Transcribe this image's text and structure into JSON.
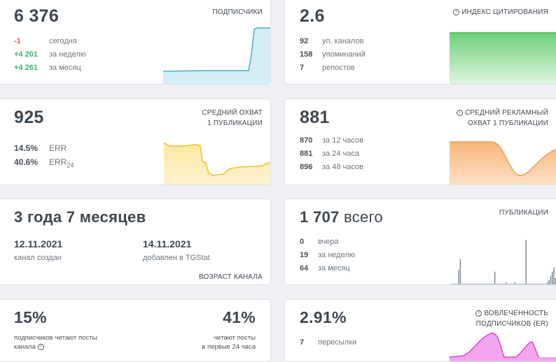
{
  "subscribers": {
    "value": "6 376",
    "label": "ПОДПИСЧИКИ",
    "rows": [
      {
        "value": "-1",
        "desc": "сегодня"
      },
      {
        "value": "+4 201",
        "desc": "за неделю"
      },
      {
        "value": "+4 261",
        "desc": "за месяц"
      }
    ],
    "accent": "#49b1c8"
  },
  "citation": {
    "value": "2.6",
    "label": "ИНДЕКС ЦИТИРОВАНИЯ",
    "rows": [
      {
        "value": "92",
        "desc": "уп. каналов"
      },
      {
        "value": "158",
        "desc": "упоминаний"
      },
      {
        "value": "7",
        "desc": "репостов"
      }
    ],
    "accent": "#3cb54a"
  },
  "avg_reach": {
    "value": "925",
    "label_line1": "СРЕДНИЙ ОХВАТ",
    "label_line2": "1 ПУБЛИКАЦИИ",
    "rows": [
      {
        "value": "14.5%",
        "desc": "ERR",
        "sub": ""
      },
      {
        "value": "40.6%",
        "desc": "ERR",
        "sub": "24"
      }
    ],
    "accent": "#f2c12e"
  },
  "ad_reach": {
    "value": "881",
    "label_line1": "СРЕДНИЙ РЕКЛАМНЫЙ",
    "label_line2": "ОХВАТ 1 ПУБЛИКАЦИИ",
    "rows": [
      {
        "value": "870",
        "desc": "за 12 часов"
      },
      {
        "value": "881",
        "desc": "за 24 часа"
      },
      {
        "value": "896",
        "desc": "за 48 часов"
      }
    ],
    "accent": "#f0a050"
  },
  "age": {
    "value": "3 года 7 месяцев",
    "created_date": "12.11.2021",
    "created_label": "канал создан",
    "added_date": "14.11.2021",
    "added_label": "добавлен в TGStat",
    "label": "ВОЗРАСТ КАНАЛА"
  },
  "publications": {
    "value": "1 707",
    "value_suffix": "всего",
    "label": "ПУБЛИКАЦИИ",
    "rows": [
      {
        "value": "0",
        "desc": "вчера"
      },
      {
        "value": "19",
        "desc": "за неделю"
      },
      {
        "value": "64",
        "desc": "за месяц"
      }
    ],
    "bars": [
      0,
      0,
      0,
      0,
      7,
      12,
      0,
      0,
      0,
      0,
      0,
      0,
      0,
      0,
      0,
      0,
      0,
      0,
      0,
      0,
      0,
      0,
      0,
      0,
      0,
      0,
      6,
      0,
      0,
      0,
      0,
      0,
      0,
      1,
      0,
      0,
      0,
      0,
      1,
      0,
      0,
      0,
      0,
      0,
      0,
      21,
      0,
      0,
      0,
      0,
      0,
      0,
      0,
      0,
      0,
      0,
      0,
      0,
      1,
      2,
      4,
      6,
      8,
      3
    ],
    "accent": "#7a8694"
  },
  "read_share": {
    "left_value": "15%",
    "left_line1": "подписчиков читают посты",
    "left_line2": "канала",
    "right_value": "41%",
    "right_line1": "читают посты",
    "right_line2": "в первые 24 часа"
  },
  "engagement": {
    "value": "2.91%",
    "label_line1": "ВОВЛЕЧЕННОСТЬ",
    "label_line2": "ПОДПИСЧИКОВ (ER)",
    "rows": [
      {
        "value": "7",
        "desc": "пересылки"
      }
    ],
    "accent": "#e040d8"
  }
}
